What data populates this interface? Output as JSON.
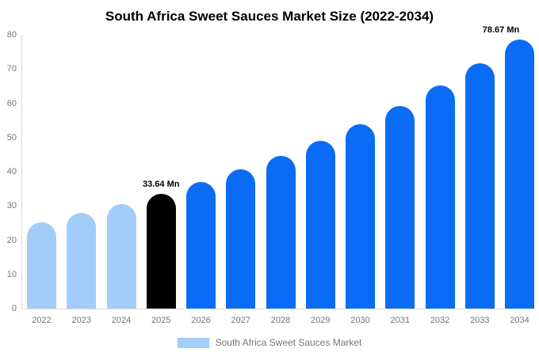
{
  "title": "South Africa Sweet Sauces Market Size (2022-2034)",
  "legend": {
    "label": "South Africa Sweet Sauces Market",
    "swatch_color": "#a3cdf9"
  },
  "colors": {
    "light_blue": "#a3cdf9",
    "bright_blue": "#0a6cf5",
    "highlight_black": "#000000",
    "axis_line": "#d9d9d9",
    "tick_text": "#757575",
    "title_text": "#000000"
  },
  "chart_data": {
    "type": "bar",
    "title": "South Africa Sweet Sauces Market Size (2022-2034)",
    "xlabel": "",
    "ylabel": "",
    "categories": [
      "2022",
      "2023",
      "2024",
      "2025",
      "2026",
      "2027",
      "2028",
      "2029",
      "2030",
      "2031",
      "2032",
      "2033",
      "2034"
    ],
    "values": [
      25.3,
      27.9,
      30.6,
      33.64,
      37.0,
      40.6,
      44.7,
      49.1,
      53.9,
      59.3,
      65.1,
      71.6,
      78.67
    ],
    "bar_colors": [
      "#a3cdf9",
      "#a3cdf9",
      "#a3cdf9",
      "#000000",
      "#0a6cf5",
      "#0a6cf5",
      "#0a6cf5",
      "#0a6cf5",
      "#0a6cf5",
      "#0a6cf5",
      "#0a6cf5",
      "#0a6cf5",
      "#0a6cf5"
    ],
    "annotations": [
      {
        "category": "2025",
        "text": "33.64 Mn"
      },
      {
        "category": "2034",
        "text": "78.67 Mn"
      }
    ],
    "ylim": [
      0,
      80
    ],
    "yticks": [
      0,
      10,
      20,
      30,
      40,
      50,
      60,
      70,
      80
    ],
    "grid": false,
    "legend_position": "bottom",
    "legend_entries": [
      "South Africa Sweet Sauces Market"
    ]
  }
}
